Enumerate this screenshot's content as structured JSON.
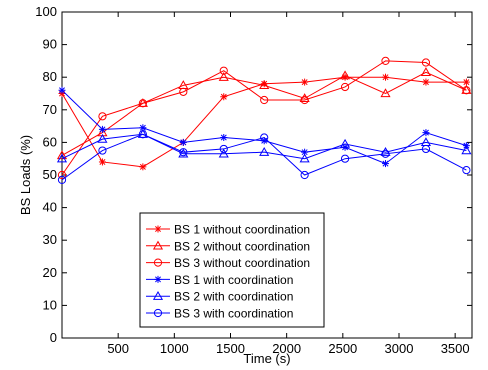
{
  "chart_data": {
    "type": "line",
    "title": "",
    "xlabel": "Time (s)",
    "ylabel": "BS Loads (%)",
    "xlim": [
      0,
      3650
    ],
    "ylim": [
      0,
      100
    ],
    "xticks": [
      500,
      1000,
      1500,
      2000,
      2500,
      3000,
      3500
    ],
    "yticks": [
      0,
      10,
      20,
      30,
      40,
      50,
      60,
      70,
      80,
      90,
      100
    ],
    "grid": false,
    "legend_position": "lower-center",
    "x": [
      0,
      360,
      720,
      1080,
      1440,
      1800,
      2160,
      2520,
      2880,
      3240,
      3600
    ],
    "series": [
      {
        "name": "BS 1 without coordination",
        "color": "#ff0000",
        "marker": "star",
        "values": [
          75,
          54,
          52.5,
          60,
          74,
          78,
          78.5,
          80,
          80,
          78.5,
          78.5
        ]
      },
      {
        "name": "BS 2 without coordination",
        "color": "#ff0000",
        "marker": "triangle",
        "values": [
          56,
          63,
          72,
          77.5,
          80,
          77.5,
          73.5,
          80.5,
          75,
          81.5,
          76
        ]
      },
      {
        "name": "BS 3 without coordination",
        "color": "#ff0000",
        "marker": "circle",
        "values": [
          50,
          68,
          72,
          75.5,
          82,
          73,
          73,
          77,
          85,
          84.5,
          76
        ]
      },
      {
        "name": "BS 1 with coordination",
        "color": "#0000ff",
        "marker": "star",
        "values": [
          76,
          64,
          64.5,
          60,
          61.5,
          60.5,
          57,
          58.5,
          53.5,
          63,
          59
        ]
      },
      {
        "name": "BS 2 with coordination",
        "color": "#0000ff",
        "marker": "triangle",
        "values": [
          55,
          61,
          62.5,
          56.5,
          56.5,
          57,
          55,
          59.5,
          57,
          60,
          57.5
        ]
      },
      {
        "name": "BS 3 with coordination",
        "color": "#0000ff",
        "marker": "circle",
        "values": [
          48.5,
          57.5,
          62.5,
          57,
          58,
          61.5,
          50,
          55,
          56.5,
          58,
          51.5
        ]
      }
    ]
  }
}
